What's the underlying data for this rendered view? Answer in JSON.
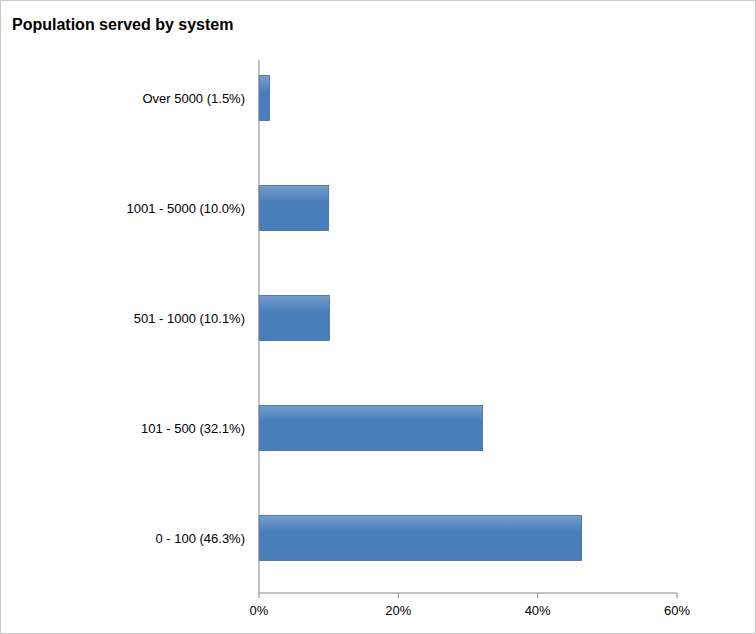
{
  "chart_data": {
    "type": "bar",
    "orientation": "horizontal",
    "title": "Population served by system",
    "categories": [
      "0 - 100 (46.3%)",
      "101 - 500 (32.1%)",
      "501 - 1000 (10.1%)",
      "1001 - 5000 (10.0%)",
      "Over 5000 (1.5%)"
    ],
    "values": [
      46.3,
      32.1,
      10.1,
      10.0,
      1.5
    ],
    "color": "#4a7ebb",
    "xlim": [
      0,
      60
    ],
    "xticks": [
      {
        "value": 0,
        "label": "0%"
      },
      {
        "value": 20,
        "label": "20%"
      },
      {
        "value": 40,
        "label": "40%"
      },
      {
        "value": 60,
        "label": "60%"
      }
    ],
    "grid": false
  }
}
